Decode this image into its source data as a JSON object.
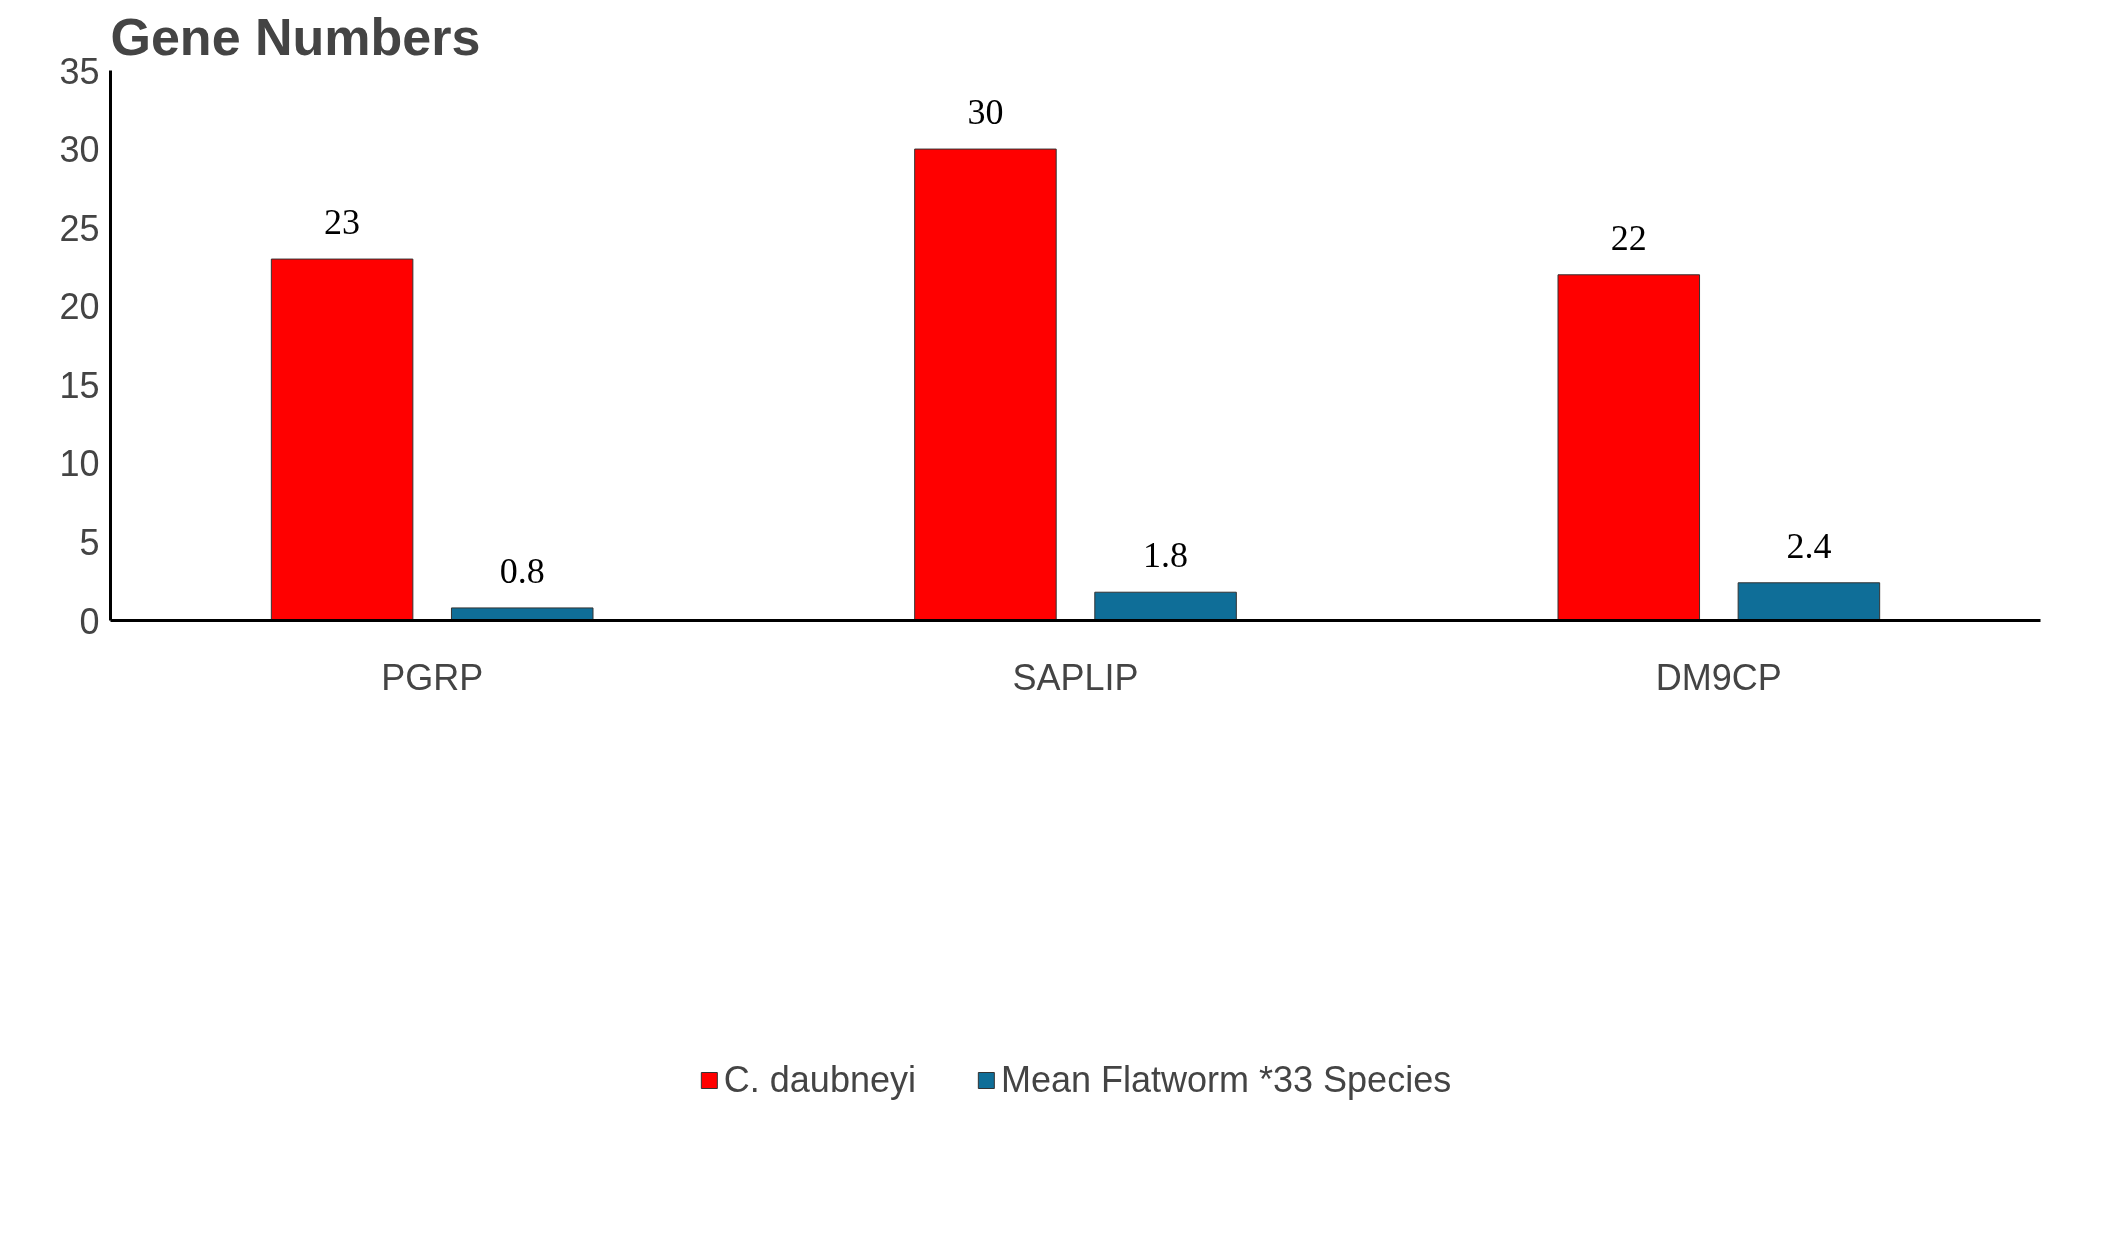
{
  "chart_data": {
    "type": "bar",
    "title": "Gene Numbers",
    "categories": [
      "PGRP",
      "SAPLIP",
      "DM9CP"
    ],
    "series": [
      {
        "name": "C. daubneyi",
        "color": "#ff0000",
        "values": [
          23,
          30,
          22
        ]
      },
      {
        "name": "Mean Flatworm *33 Species",
        "color": "#0f6e98",
        "values": [
          0.8,
          1.8,
          2.4
        ]
      }
    ],
    "ylim": [
      0,
      35
    ],
    "yticks": [
      0,
      5,
      10,
      15,
      20,
      25,
      30,
      35
    ],
    "grid": false,
    "legend": "bottom",
    "data_labels": true
  }
}
